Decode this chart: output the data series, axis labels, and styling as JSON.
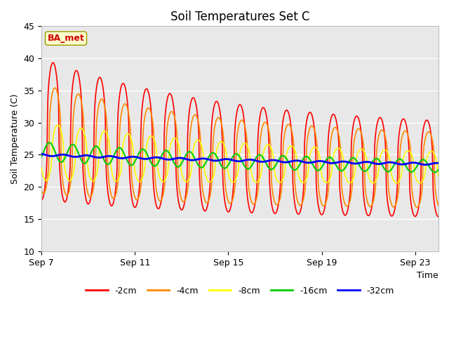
{
  "title": "Soil Temperatures Set C",
  "xlabel": "Time",
  "ylabel": "Soil Temperature (C)",
  "ylim": [
    10,
    45
  ],
  "yticks": [
    10,
    15,
    20,
    25,
    30,
    35,
    40,
    45
  ],
  "xlim_days": [
    0,
    17
  ],
  "x_tick_labels": [
    "Sep 7",
    "Sep 11",
    "Sep 15",
    "Sep 19",
    "Sep 23"
  ],
  "x_tick_positions": [
    0,
    4,
    8,
    12,
    16
  ],
  "series_colors": {
    "-2cm": "#ff0000",
    "-4cm": "#ff8800",
    "-8cm": "#ffff00",
    "-16cm": "#00cc00",
    "-32cm": "#0000ff"
  },
  "series_linewidths": {
    "-2cm": 1.2,
    "-4cm": 1.2,
    "-8cm": 1.2,
    "-16cm": 1.5,
    "-32cm": 2.0
  },
  "annotation_text": "BA_met",
  "annotation_color": "#cc0000",
  "annotation_bg": "#ffffcc",
  "annotation_border": "#999900",
  "background_plot": "#e8e8e8",
  "background_fig": "#ffffff",
  "grid_color": "#ffffff",
  "title_fontsize": 12,
  "axis_label_fontsize": 9,
  "tick_fontsize": 9,
  "legend_fontsize": 9
}
